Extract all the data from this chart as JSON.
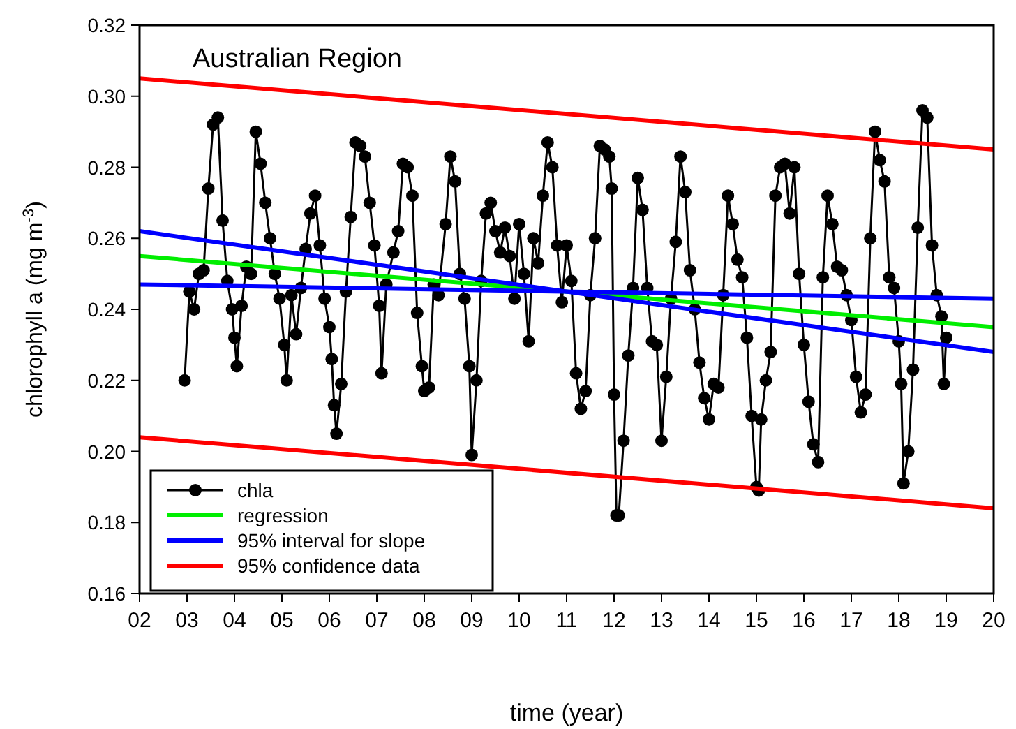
{
  "chart_data": {
    "type": "line",
    "title": "Australian Region",
    "xlabel": "time (year)",
    "ylabel": "chlorophyll a (mg m$^{-3}$)",
    "xlim": [
      2,
      20
    ],
    "ylim": [
      0.16,
      0.32
    ],
    "xticks": [
      {
        "value": 2,
        "label": "02"
      },
      {
        "value": 3,
        "label": "03"
      },
      {
        "value": 4,
        "label": "04"
      },
      {
        "value": 5,
        "label": "05"
      },
      {
        "value": 6,
        "label": "06"
      },
      {
        "value": 7,
        "label": "07"
      },
      {
        "value": 8,
        "label": "08"
      },
      {
        "value": 9,
        "label": "09"
      },
      10,
      11,
      12,
      13,
      14,
      15,
      16,
      17,
      18,
      19,
      20
    ],
    "yticks": [
      {
        "value": 0.16,
        "label": "0.16"
      },
      {
        "value": 0.18,
        "label": "0.18"
      },
      {
        "value": 0.2,
        "label": "0.20"
      },
      {
        "value": 0.22,
        "label": "0.22"
      },
      {
        "value": 0.24,
        "label": "0.24"
      },
      {
        "value": 0.26,
        "label": "0.26"
      },
      {
        "value": 0.28,
        "label": "0.28"
      },
      {
        "value": 0.3,
        "label": "0.30"
      },
      {
        "value": 0.32,
        "label": "0.32"
      }
    ],
    "legend": "bottom left",
    "grid": false,
    "series": [
      {
        "name": "chla",
        "color": "#000000",
        "marker": "circle",
        "x": [
          2.95,
          3.05,
          3.15,
          3.25,
          3.35,
          3.45,
          3.55,
          3.65,
          3.75,
          3.85,
          3.95,
          4.0,
          4.05,
          4.15,
          4.25,
          4.35,
          4.45,
          4.55,
          4.65,
          4.75,
          4.85,
          4.95,
          5.05,
          5.1,
          5.2,
          5.3,
          5.4,
          5.5,
          5.6,
          5.7,
          5.8,
          5.9,
          6.0,
          6.05,
          6.1,
          6.15,
          6.25,
          6.35,
          6.45,
          6.55,
          6.65,
          6.75,
          6.85,
          6.95,
          7.05,
          7.1,
          7.2,
          7.35,
          7.45,
          7.55,
          7.65,
          7.75,
          7.85,
          7.95,
          8.0,
          8.1,
          8.2,
          8.3,
          8.45,
          8.55,
          8.65,
          8.75,
          8.85,
          8.95,
          9.0,
          9.1,
          9.2,
          9.3,
          9.4,
          9.5,
          9.6,
          9.7,
          9.8,
          9.9,
          10.0,
          10.1,
          10.2,
          10.3,
          10.4,
          10.5,
          10.6,
          10.7,
          10.8,
          10.9,
          11.0,
          11.1,
          11.2,
          11.3,
          11.4,
          11.5,
          11.6,
          11.7,
          11.8,
          11.9,
          11.95,
          12.0,
          12.05,
          12.1,
          12.2,
          12.3,
          12.4,
          12.5,
          12.6,
          12.7,
          12.8,
          12.9,
          13.0,
          13.1,
          13.2,
          13.3,
          13.4,
          13.5,
          13.6,
          13.7,
          13.8,
          13.9,
          14.0,
          14.1,
          14.2,
          14.3,
          14.4,
          14.5,
          14.6,
          14.7,
          14.8,
          14.9,
          15.0,
          15.05,
          15.1,
          15.2,
          15.3,
          15.4,
          15.5,
          15.6,
          15.7,
          15.8,
          15.9,
          16.0,
          16.1,
          16.2,
          16.3,
          16.4,
          16.5,
          16.6,
          16.7,
          16.8,
          16.9,
          17.0,
          17.1,
          17.2,
          17.3,
          17.4,
          17.5,
          17.6,
          17.7,
          17.8,
          17.9,
          18.0,
          18.05,
          18.1,
          18.2,
          18.3,
          18.4,
          18.5,
          18.6,
          18.7,
          18.8,
          18.9,
          18.95,
          19.0
        ],
        "values": [
          0.22,
          0.245,
          0.24,
          0.25,
          0.251,
          0.274,
          0.292,
          0.294,
          0.265,
          0.248,
          0.24,
          0.232,
          0.224,
          0.241,
          0.252,
          0.25,
          0.29,
          0.281,
          0.27,
          0.26,
          0.25,
          0.243,
          0.23,
          0.22,
          0.244,
          0.233,
          0.246,
          0.257,
          0.267,
          0.272,
          0.258,
          0.243,
          0.235,
          0.226,
          0.213,
          0.205,
          0.219,
          0.245,
          0.266,
          0.287,
          0.286,
          0.283,
          0.27,
          0.258,
          0.241,
          0.222,
          0.247,
          0.256,
          0.262,
          0.281,
          0.28,
          0.272,
          0.239,
          0.224,
          0.217,
          0.218,
          0.247,
          0.244,
          0.264,
          0.283,
          0.276,
          0.25,
          0.243,
          0.224,
          0.199,
          0.22,
          0.248,
          0.267,
          0.27,
          0.262,
          0.256,
          0.263,
          0.255,
          0.243,
          0.264,
          0.25,
          0.231,
          0.26,
          0.253,
          0.272,
          0.287,
          0.28,
          0.258,
          0.242,
          0.258,
          0.248,
          0.222,
          0.212,
          0.217,
          0.244,
          0.26,
          0.286,
          0.285,
          0.283,
          0.274,
          0.216,
          0.182,
          0.182,
          0.203,
          0.227,
          0.246,
          0.277,
          0.268,
          0.246,
          0.231,
          0.23,
          0.203,
          0.221,
          0.243,
          0.259,
          0.283,
          0.273,
          0.251,
          0.24,
          0.225,
          0.215,
          0.209,
          0.219,
          0.218,
          0.244,
          0.272,
          0.264,
          0.254,
          0.249,
          0.232,
          0.21,
          0.19,
          0.189,
          0.209,
          0.22,
          0.228,
          0.272,
          0.28,
          0.281,
          0.267,
          0.28,
          0.25,
          0.23,
          0.214,
          0.202,
          0.197,
          0.249,
          0.272,
          0.264,
          0.252,
          0.251,
          0.244,
          0.237,
          0.221,
          0.211,
          0.216,
          0.26,
          0.29,
          0.282,
          0.276,
          0.249,
          0.246,
          0.231,
          0.219,
          0.191,
          0.2,
          0.223,
          0.263,
          0.296,
          0.294,
          0.258,
          0.244,
          0.238,
          0.219,
          0.232
        ]
      },
      {
        "name": "regression",
        "color": "#00ee00",
        "marker": "none",
        "x": [
          2,
          20
        ],
        "values": [
          0.255,
          0.235
        ]
      },
      {
        "name": "95% interval for slope",
        "color": "#0000ff",
        "marker": "none",
        "x": [
          2,
          20
        ],
        "values": [
          0.262,
          0.228
        ]
      },
      {
        "color": "#0000ff",
        "marker": "none",
        "x": [
          2,
          20
        ],
        "values": [
          0.247,
          0.243
        ]
      },
      {
        "name": "95% confidence data",
        "color": "#ff0000",
        "marker": "none",
        "x": [
          2,
          20
        ],
        "values": [
          0.305,
          0.285
        ]
      },
      {
        "color": "#ff0000",
        "marker": "none",
        "x": [
          2,
          20
        ],
        "values": [
          0.204,
          0.184
        ]
      }
    ]
  }
}
